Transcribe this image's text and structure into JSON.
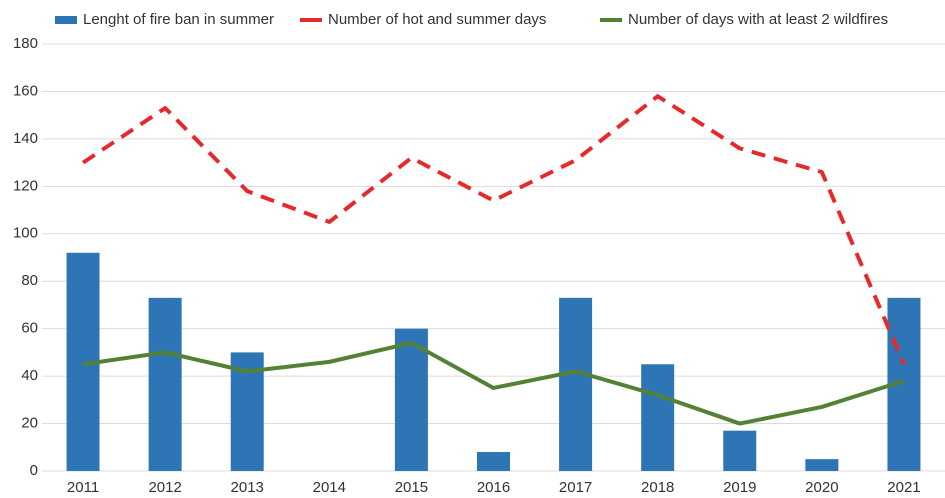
{
  "chart_data": {
    "type": "bar",
    "categories": [
      "2011",
      "2012",
      "2013",
      "2014",
      "2015",
      "2016",
      "2017",
      "2018",
      "2019",
      "2020",
      "2021"
    ],
    "series": [
      {
        "name": "Lenght of fire ban in summer",
        "type": "bar",
        "color": "#2e75b6",
        "values": [
          92,
          73,
          50,
          0,
          60,
          8,
          73,
          45,
          17,
          5,
          73
        ]
      },
      {
        "name": "Number of hot and summer days",
        "type": "line",
        "dashed": true,
        "color": "#e8292b",
        "values": [
          130,
          153,
          118,
          105,
          132,
          114,
          131,
          158,
          136,
          126,
          45
        ]
      },
      {
        "name": "Number of days with at least 2 wildfires",
        "type": "line",
        "dashed": false,
        "color": "#538135",
        "values": [
          45,
          50,
          42,
          46,
          54,
          35,
          42,
          32,
          20,
          27,
          38
        ]
      }
    ],
    "ylim": [
      0,
      180
    ],
    "yticks": [
      0,
      20,
      40,
      60,
      80,
      100,
      120,
      140,
      160,
      180
    ],
    "grid": true,
    "legend": "top"
  }
}
